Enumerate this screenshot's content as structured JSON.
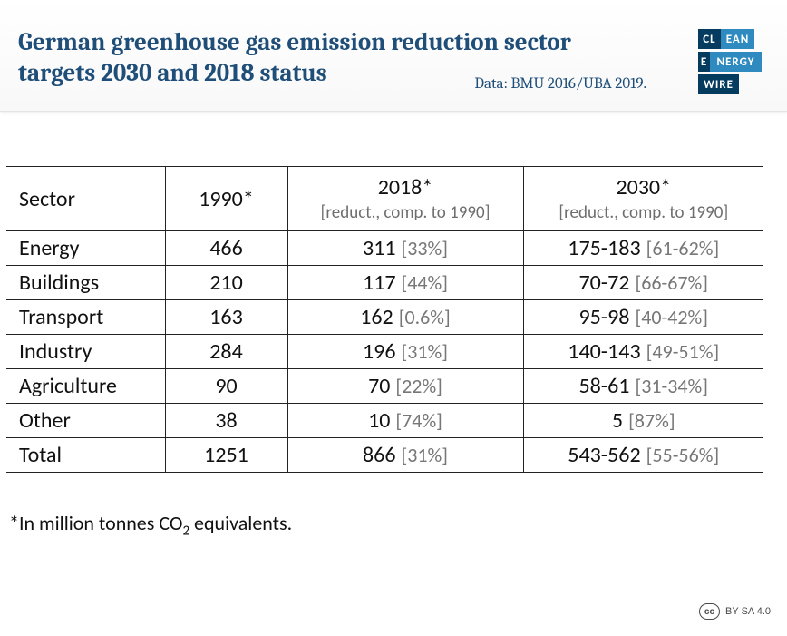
{
  "header": {
    "title": "German greenhouse gas emission reduction sector targets 2030 and 2018 status",
    "source": "Data: BMU 2016/UBA 2019.",
    "title_color": "#1f4e79",
    "title_fontsize": 27
  },
  "logo": {
    "row1_dark": "CL",
    "row1_light": "EAN",
    "row2_dark": "E",
    "row2_light": "NERGY",
    "row3_dark": "WIRE",
    "dark_color": "#043b5f",
    "light_color": "#2f8bbf"
  },
  "table": {
    "type": "table",
    "columns": {
      "sector": {
        "header": "Sector",
        "subheader": ""
      },
      "y1990": {
        "header": "1990*",
        "subheader": ""
      },
      "y2018": {
        "header": "2018*",
        "subheader": "[reduct., comp. to 1990]"
      },
      "y2030": {
        "header": "2030*",
        "subheader": "[reduct., comp. to 1990]"
      }
    },
    "rows": [
      {
        "sector": "Energy",
        "y1990": "466",
        "y2018_val": "311",
        "y2018_pct": "[33%]",
        "y2030_val": "175-183",
        "y2030_pct": "[61-62%]"
      },
      {
        "sector": "Buildings",
        "y1990": "210",
        "y2018_val": "117",
        "y2018_pct": "[44%]",
        "y2030_val": "70-72",
        "y2030_pct": "[66-67%]"
      },
      {
        "sector": "Transport",
        "y1990": "163",
        "y2018_val": "162",
        "y2018_pct": "[0.6%]",
        "y2030_val": "95-98",
        "y2030_pct": "[40-42%]"
      },
      {
        "sector": "Industry",
        "y1990": "284",
        "y2018_val": "196",
        "y2018_pct": "[31%]",
        "y2030_val": "140-143",
        "y2030_pct": "[49-51%]"
      },
      {
        "sector": "Agriculture",
        "y1990": "90",
        "y2018_val": "70",
        "y2018_pct": "[22%]",
        "y2030_val": "58-61",
        "y2030_pct": "[31-34%]"
      },
      {
        "sector": "Other",
        "y1990": "38",
        "y2018_val": "10",
        "y2018_pct": "[74%]",
        "y2030_val": "5",
        "y2030_pct": "[87%]"
      }
    ],
    "total": {
      "sector": "Total",
      "y1990": "1251",
      "y2018_val": "866",
      "y2018_pct": "[31%]",
      "y2030_val": "543-562",
      "y2030_pct": "[55-56%]"
    },
    "border_color": "#222222",
    "pct_color": "#777777",
    "body_fontsize": 24,
    "sublabel_fontsize": 19
  },
  "footnote": {
    "prefix": "*In million tonnes CO",
    "sub": "2",
    "suffix": " equivalents."
  },
  "license": {
    "badge": "cc",
    "text": "BY SA 4.0"
  }
}
